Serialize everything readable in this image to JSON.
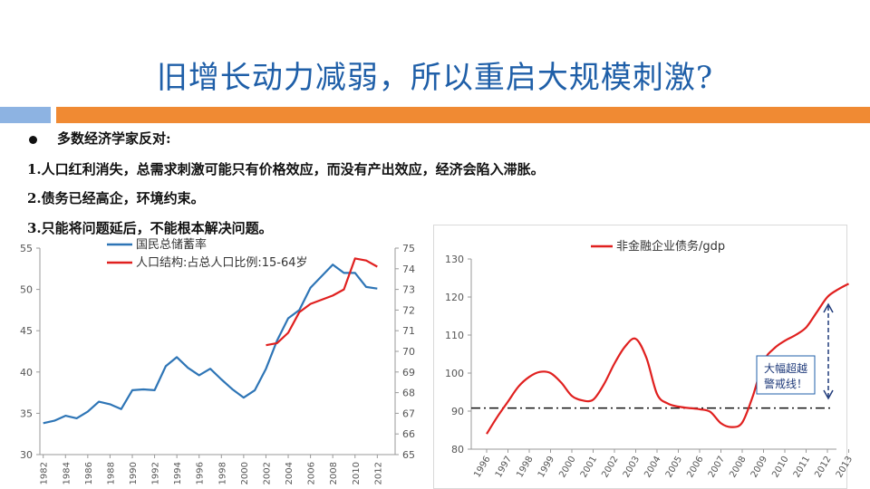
{
  "title": "旧增长动力减弱，所以重启大规模刺激?",
  "bullet_header": "多数经济学家反对:",
  "points": [
    "1.人口红利消失，总需求刺激可能只有价格效应，而没有产出效应，经济会陷入滞胀。",
    "2.债务已经高企，环境约束。",
    "3.只能将问题延后，不能根本解决问题。"
  ],
  "colors": {
    "title": "#1f5fa8",
    "blue_series": "#2e75b6",
    "red_series": "#e0201f",
    "band_blue": "#8db3e2",
    "band_orange": "#f08a33"
  },
  "chart_data": [
    {
      "type": "line",
      "x": [
        1982,
        1983,
        1984,
        1985,
        1986,
        1987,
        1988,
        1989,
        1990,
        1991,
        1992,
        1993,
        1994,
        1995,
        1996,
        1997,
        1998,
        1999,
        2000,
        2001,
        2002,
        2003,
        2004,
        2005,
        2006,
        2007,
        2008,
        2009,
        2010,
        2011,
        2012,
        2013
      ],
      "x_tick_labels": [
        "1982",
        "1984",
        "1986",
        "1988",
        "1990",
        "1992",
        "1994",
        "1996",
        "1998",
        "2000",
        "2002",
        "2004",
        "2006",
        "2008",
        "2010",
        "2012"
      ],
      "ylim": [
        30,
        55
      ],
      "y_ticks": [
        "30",
        "35",
        "40",
        "45",
        "50",
        "55"
      ],
      "y2lim": [
        65,
        75
      ],
      "y2_ticks": [
        "65",
        "66",
        "67",
        "68",
        "69",
        "70",
        "71",
        "72",
        "73",
        "74",
        "75"
      ],
      "legend_position": "top-left",
      "series": [
        {
          "name": "国民总储蓄率",
          "axis": "left",
          "values": [
            33.8,
            34.1,
            34.7,
            34.4,
            35.2,
            36.4,
            36.1,
            35.5,
            37.8,
            37.9,
            37.8,
            40.7,
            41.8,
            40.5,
            39.6,
            40.4,
            39.1,
            37.9,
            36.9,
            37.8,
            40.4,
            43.8,
            46.5,
            47.5,
            50.2,
            51.6,
            53,
            52,
            52,
            50.3,
            50.1,
            null
          ]
        },
        {
          "name": "人口结构:占总人口比例:15-64岁",
          "axis": "right",
          "values": [
            null,
            null,
            null,
            null,
            null,
            null,
            null,
            null,
            null,
            null,
            null,
            null,
            null,
            null,
            null,
            null,
            null,
            null,
            null,
            null,
            70.3,
            70.4,
            70.9,
            71.9,
            72.3,
            72.5,
            72.7,
            73,
            74.5,
            74.4,
            74.1,
            null
          ]
        }
      ]
    },
    {
      "type": "line",
      "x_tick_labels": [
        "1996",
        "1997",
        "1998",
        "1999",
        "2000",
        "2001",
        "2002",
        "2003",
        "2004",
        "2005",
        "2006",
        "2007",
        "2008",
        "2009",
        "2010",
        "2011",
        "2012",
        "2013"
      ],
      "ylim": [
        80,
        130
      ],
      "y_ticks": [
        "80",
        "90",
        "100",
        "110",
        "120",
        "130"
      ],
      "legend_position": "top-left",
      "threshold": 90.8,
      "annotation": "大幅超越警戒线！",
      "annotation_lines": [
        "大幅超越",
        "警戒线！"
      ],
      "series": [
        {
          "name": "非金融企业债务/gdp",
          "x": [
            1996,
            1996.5,
            1997,
            1997.5,
            1998,
            1998.5,
            1999,
            1999.5,
            2000,
            2000.5,
            2001,
            2001.5,
            2002,
            2002.5,
            2003,
            2003.5,
            2004,
            2004.5,
            2005,
            2005.5,
            2006,
            2006.5,
            2007,
            2007.5,
            2008,
            2008.5,
            2009,
            2009.5,
            2010,
            2010.5,
            2011,
            2011.5,
            2012,
            2012.5,
            2013
          ],
          "values": [
            84,
            88.5,
            92.5,
            96.5,
            99,
            100.3,
            100,
            97.5,
            94,
            92.8,
            93,
            97,
            102.5,
            107,
            109,
            104,
            94.5,
            92,
            91.2,
            90.8,
            90.5,
            89.8,
            86.8,
            85.8,
            87,
            94,
            103,
            106.5,
            108.5,
            110,
            112,
            116,
            120,
            122,
            123.5
          ]
        }
      ]
    }
  ]
}
